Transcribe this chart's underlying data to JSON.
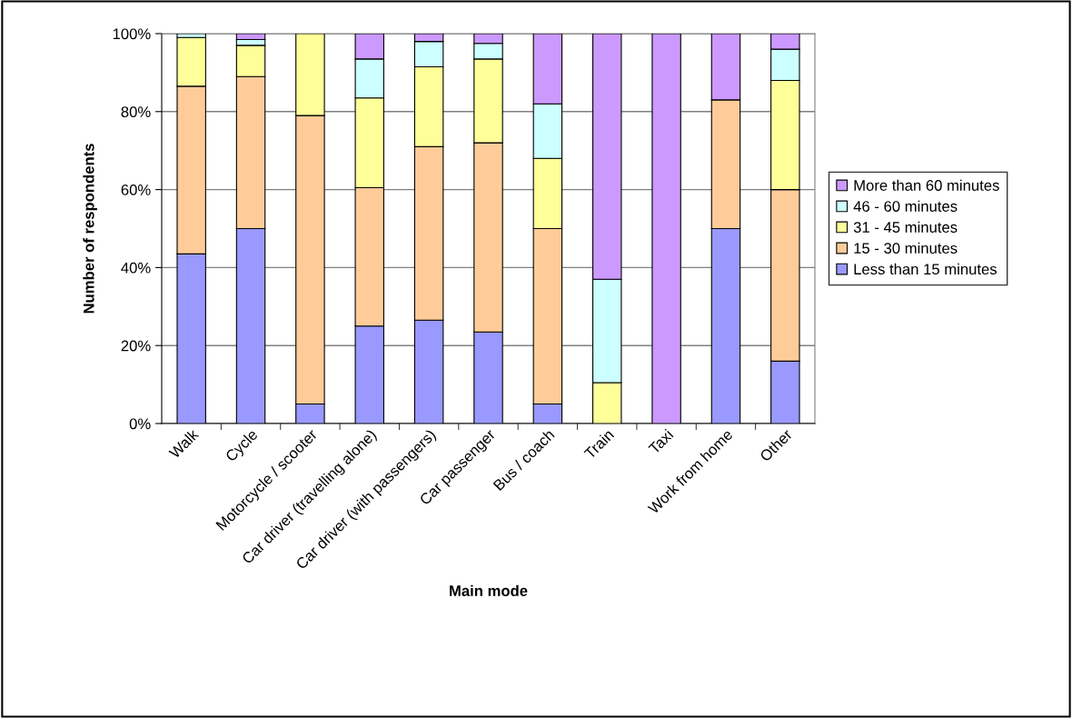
{
  "chart_data": {
    "type": "bar",
    "stacked": true,
    "xlabel": "Main mode",
    "ylabel": "Number of respondents",
    "categories": [
      "Walk",
      "Cycle",
      "Motorcycle / scooter",
      "Car driver (travelling alone)",
      "Car driver (with passengers)",
      "Car passenger",
      "Bus / coach",
      "Train",
      "Taxi",
      "Work from home",
      "Other"
    ],
    "series": [
      {
        "name": "Less than 15 minutes",
        "color": "#9999ff",
        "values": [
          43.5,
          50,
          5,
          25,
          26.5,
          23.5,
          5,
          0,
          0,
          50,
          16
        ]
      },
      {
        "name": "15 - 30 minutes",
        "color": "#ffcc99",
        "values": [
          43,
          39,
          74,
          35.5,
          44.5,
          48.5,
          45,
          0,
          0,
          33,
          44
        ]
      },
      {
        "name": "31 - 45 minutes",
        "color": "#ffff99",
        "values": [
          12.5,
          8,
          21,
          23,
          20.5,
          21.5,
          18,
          10.5,
          0,
          0,
          28
        ]
      },
      {
        "name": "46 - 60 minutes",
        "color": "#ccffff",
        "values": [
          1,
          1.5,
          0,
          10,
          6.5,
          4,
          14,
          26.5,
          0,
          0,
          8
        ]
      },
      {
        "name": "More than 60 minutes",
        "color": "#cc99ff",
        "values": [
          0,
          1.5,
          0,
          6.5,
          2,
          2.5,
          18,
          63,
          100,
          17,
          4
        ]
      }
    ],
    "ylim": [
      0,
      100
    ],
    "yticks": [
      {
        "value": 0,
        "label": "0%"
      },
      {
        "value": 20,
        "label": "20%"
      },
      {
        "value": 40,
        "label": "40%"
      },
      {
        "value": 60,
        "label": "60%"
      },
      {
        "value": 80,
        "label": "80%"
      },
      {
        "value": 100,
        "label": "100%"
      }
    ],
    "grid": "y",
    "legend": "right"
  }
}
